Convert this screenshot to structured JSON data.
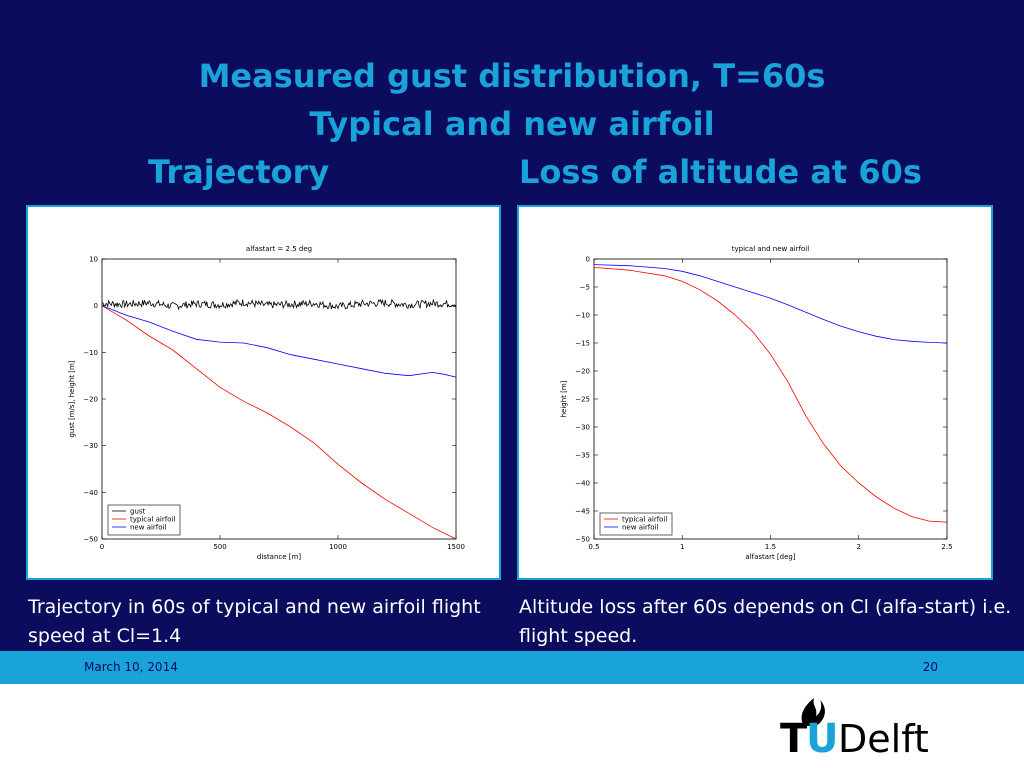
{
  "slide": {
    "title_line1": "Measured gust distribution, T=60s",
    "title_line2": "Typical and new airfoil",
    "subtitle_left": "Trajectory",
    "subtitle_right": "Loss of altitude at 60s",
    "caption_left": "Trajectory in 60s of typical and new airfoil flight speed at Cl=1.4",
    "caption_right": "Altitude loss after 60s depends on Cl (alfa-start) i.e. flight speed.",
    "footer_date": "March 10, 2014",
    "page_number": "20",
    "logo_text_t": "T",
    "logo_text_u": "U",
    "logo_text_delft": "Delft"
  },
  "colors": {
    "background": "#0c0c5e",
    "accent": "#1aa3d8",
    "gust": "#000000",
    "typical": "#ff0000",
    "new": "#0000ff"
  },
  "chart_data": [
    {
      "type": "line",
      "title": "alfastart = 2.5 deg",
      "xlabel": "distance [m]",
      "ylabel": "gust [m/s], height [m]",
      "xlim": [
        0,
        1500
      ],
      "ylim": [
        -50,
        10
      ],
      "xticks": [
        0,
        500,
        1000,
        1500
      ],
      "yticks": [
        10,
        0,
        -10,
        -20,
        -30,
        -40,
        -50
      ],
      "legend_position": "bottom-left",
      "series": [
        {
          "name": "gust",
          "color": "#000000",
          "noise": true,
          "x": [
            0,
            100,
            200,
            300,
            400,
            500,
            600,
            700,
            800,
            900,
            1000,
            1100,
            1200,
            1300,
            1400,
            1500
          ],
          "y": [
            0.5,
            0.3,
            0.6,
            -0.1,
            0.4,
            0.2,
            0.7,
            0.1,
            0.3,
            0.5,
            -0.2,
            0.4,
            0.6,
            0.2,
            0.5,
            0.4
          ]
        },
        {
          "name": "typical airfoil",
          "color": "#ff0000",
          "noise": false,
          "x": [
            0,
            50,
            100,
            200,
            300,
            400,
            500,
            600,
            700,
            800,
            900,
            1000,
            1100,
            1200,
            1300,
            1400,
            1500
          ],
          "y": [
            0,
            -1.5,
            -3,
            -6.5,
            -9.5,
            -13.5,
            -17.5,
            -20.5,
            -23,
            -26,
            -29.5,
            -34,
            -38,
            -41.5,
            -44.5,
            -47.5,
            -50
          ]
        },
        {
          "name": "new airfoil",
          "color": "#0000ff",
          "noise": false,
          "x": [
            0,
            50,
            100,
            200,
            300,
            400,
            500,
            600,
            700,
            800,
            900,
            1000,
            1100,
            1200,
            1300,
            1400,
            1450,
            1500
          ],
          "y": [
            0,
            -1,
            -2,
            -3.5,
            -5.5,
            -7.2,
            -7.8,
            -8,
            -9,
            -10.5,
            -11.5,
            -12.5,
            -13.5,
            -14.5,
            -15,
            -14.3,
            -14.7,
            -15.3
          ]
        }
      ]
    },
    {
      "type": "line",
      "title": "typical and new airfoil",
      "xlabel": "alfastart [deg]",
      "ylabel": "height [m]",
      "xlim": [
        0.5,
        2.5
      ],
      "ylim": [
        -50,
        0
      ],
      "xticks": [
        0.5,
        1,
        1.5,
        2,
        2.5
      ],
      "yticks": [
        0,
        -5,
        -10,
        -15,
        -20,
        -25,
        -30,
        -35,
        -40,
        -45,
        -50
      ],
      "legend_position": "bottom-left",
      "series": [
        {
          "name": "typical airfoil",
          "color": "#ff0000",
          "x": [
            0.5,
            0.7,
            0.9,
            1.0,
            1.1,
            1.2,
            1.3,
            1.4,
            1.5,
            1.6,
            1.7,
            1.8,
            1.9,
            2.0,
            2.1,
            2.2,
            2.3,
            2.4,
            2.5
          ],
          "y": [
            -1.5,
            -2,
            -3,
            -4,
            -5.5,
            -7.5,
            -10,
            -13,
            -17,
            -22,
            -28,
            -33,
            -37,
            -40,
            -42.5,
            -44.5,
            -46,
            -46.8,
            -47
          ]
        },
        {
          "name": "new airfoil",
          "color": "#0000ff",
          "x": [
            0.5,
            0.7,
            0.9,
            1.0,
            1.1,
            1.2,
            1.3,
            1.4,
            1.5,
            1.6,
            1.7,
            1.8,
            1.9,
            2.0,
            2.1,
            2.2,
            2.3,
            2.4,
            2.5
          ],
          "y": [
            -1,
            -1.2,
            -1.7,
            -2.2,
            -3,
            -4,
            -5,
            -6,
            -7,
            -8.2,
            -9.5,
            -10.8,
            -12,
            -13,
            -13.8,
            -14.4,
            -14.7,
            -14.9,
            -15
          ]
        }
      ]
    }
  ]
}
